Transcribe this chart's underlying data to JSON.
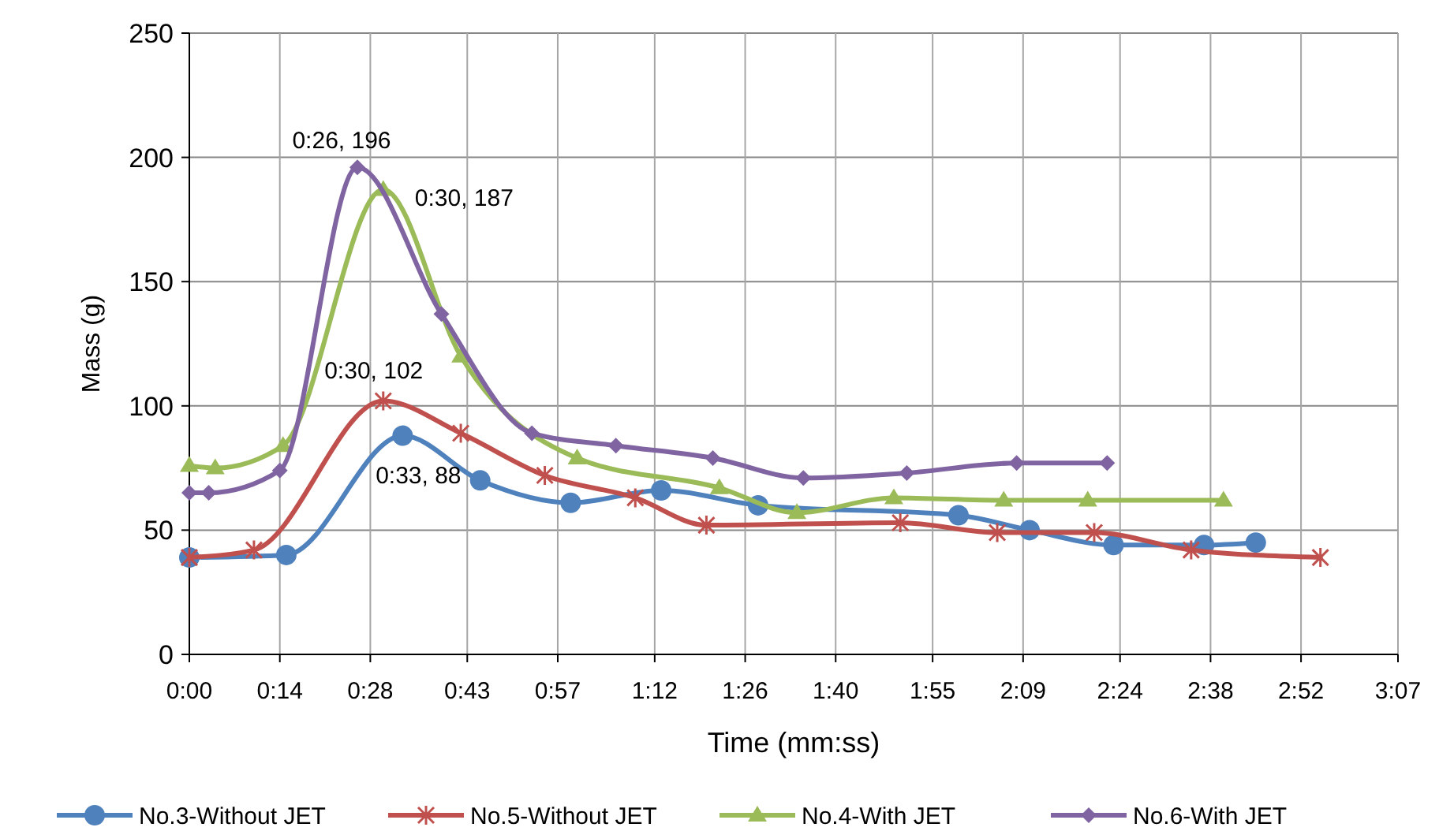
{
  "chart_data": {
    "type": "line",
    "xlabel": "Time (mm:ss)",
    "ylabel": "Mass (g)",
    "xlim": [
      0,
      187
    ],
    "xticks": [
      {
        "value": 0,
        "label": "0:00"
      },
      {
        "value": 14,
        "label": "0:14"
      },
      {
        "value": 28,
        "label": "0:28"
      },
      {
        "value": 43,
        "label": "0:43"
      },
      {
        "value": 57,
        "label": "0:57"
      },
      {
        "value": 72,
        "label": "1:12"
      },
      {
        "value": 86,
        "label": "1:26"
      },
      {
        "value": 100,
        "label": "1:40"
      },
      {
        "value": 115,
        "label": "1:55"
      },
      {
        "value": 129,
        "label": "2:09"
      },
      {
        "value": 144,
        "label": "2:24"
      },
      {
        "value": 158,
        "label": "2:38"
      },
      {
        "value": 172,
        "label": "2:52"
      },
      {
        "value": 187,
        "label": "3:07"
      }
    ],
    "ylim": [
      0,
      250
    ],
    "yticks": [
      0,
      50,
      100,
      150,
      200,
      250
    ],
    "grid": true,
    "legend": "bottom",
    "series": [
      {
        "name": "No.3-Without JET",
        "color": "#4f81bd",
        "marker": "circle",
        "x": [
          0,
          15,
          33,
          45,
          59,
          73,
          88,
          119,
          130,
          143,
          157,
          165
        ],
        "values": [
          39,
          40,
          88,
          70,
          61,
          66,
          60,
          56,
          50,
          44,
          44,
          45
        ]
      },
      {
        "name": "No.5-Without JET",
        "color": "#c0504d",
        "marker": "cross",
        "x": [
          0,
          10,
          30,
          42,
          55,
          69,
          80,
          110,
          125,
          140,
          155,
          175
        ],
        "values": [
          39,
          42,
          102,
          89,
          72,
          63,
          52,
          53,
          49,
          49,
          42,
          39
        ]
      },
      {
        "name": "No.4-With JET",
        "color": "#9bbb59",
        "marker": "triangle",
        "x": [
          0,
          4,
          14.5,
          30,
          42,
          60,
          82,
          94,
          109,
          126,
          139,
          160
        ],
        "values": [
          76,
          75,
          84,
          187,
          120,
          79,
          67,
          57,
          63,
          62,
          62,
          62
        ]
      },
      {
        "name": "No.6-With JET",
        "color": "#8064a2",
        "marker": "diamond",
        "x": [
          0,
          3,
          14,
          26,
          39,
          53,
          66,
          81,
          95,
          111,
          128,
          142
        ],
        "values": [
          65,
          65,
          74,
          196,
          137,
          89,
          84,
          79,
          71,
          73,
          77,
          77
        ]
      }
    ],
    "annotations": [
      {
        "text": "0:26, 196",
        "x": 26,
        "y": 196
      },
      {
        "text": "0:30, 187",
        "x": 30,
        "y": 187
      },
      {
        "text": "0:30, 102",
        "x": 30,
        "y": 102
      },
      {
        "text": "0:33, 88",
        "x": 33,
        "y": 88
      }
    ]
  }
}
